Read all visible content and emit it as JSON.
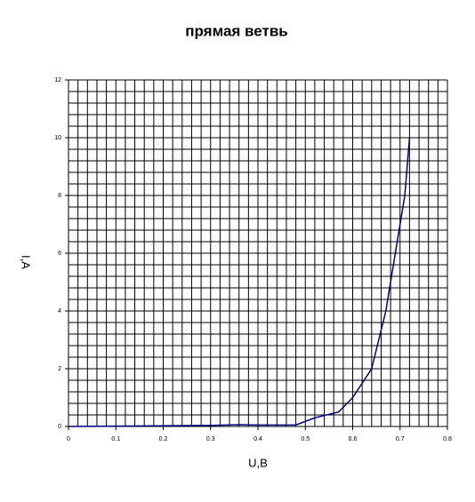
{
  "chart_data": {
    "type": "line",
    "title": "прямая ветвь",
    "x_label": "U,B",
    "y_label": "I,A",
    "x": [
      0,
      0.16,
      0.3,
      0.36,
      0.4,
      0.48,
      0.52,
      0.57,
      0.6,
      0.64,
      0.67,
      0.7,
      0.71,
      0.72
    ],
    "series": [
      {
        "name": "I",
        "color": "#000080",
        "values": [
          0,
          0.02,
          0.04,
          0.06,
          0.05,
          0.05,
          0.3,
          0.5,
          1,
          2,
          4,
          7,
          8,
          10
        ]
      }
    ],
    "xlim": [
      0,
      0.8
    ],
    "xticks": [
      0,
      0.1,
      0.2,
      0.3,
      0.4,
      0.5,
      0.6,
      0.7,
      0.8
    ],
    "ylim": [
      0,
      12
    ],
    "yticks": [
      0,
      2,
      4,
      6,
      8,
      10,
      12
    ],
    "xgrid": [
      0,
      0.02,
      0.04,
      0.06,
      0.08,
      0.1,
      0.12,
      0.14,
      0.16,
      0.18,
      0.2,
      0.22,
      0.24,
      0.26,
      0.28,
      0.3,
      0.32,
      0.34,
      0.36,
      0.38,
      0.4,
      0.42,
      0.44,
      0.46,
      0.48,
      0.5,
      0.52,
      0.54,
      0.56,
      0.58,
      0.6,
      0.62,
      0.64,
      0.66,
      0.68,
      0.7,
      0.72,
      0.74,
      0.76,
      0.78,
      0.8
    ],
    "ygrid": [
      0,
      0.4,
      0.8,
      1.2,
      1.6,
      2,
      2.4,
      2.8,
      3.2,
      3.6,
      4,
      4.4,
      4.8,
      5.2,
      5.6,
      6,
      6.4,
      6.8,
      7.2,
      7.6,
      8,
      8.4,
      8.8,
      9.2,
      9.6,
      10,
      10.4,
      10.8,
      11.2,
      11.6,
      12
    ],
    "grid": true
  }
}
